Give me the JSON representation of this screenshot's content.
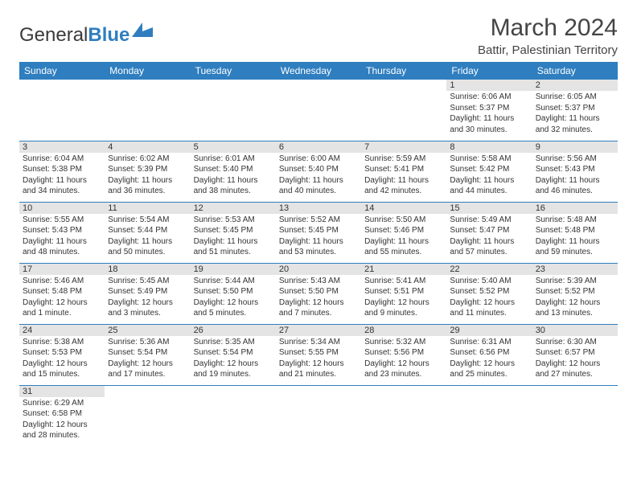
{
  "brand": {
    "part1": "General",
    "part2": "Blue",
    "logo_color": "#2f7ebf"
  },
  "title": "March 2024",
  "location": "Battir, Palestinian Territory",
  "colors": {
    "header_bg": "#2f7ebf",
    "header_text": "#ffffff",
    "daynum_bg": "#e4e4e4",
    "border": "#2f7ebf",
    "text": "#333333"
  },
  "day_headers": [
    "Sunday",
    "Monday",
    "Tuesday",
    "Wednesday",
    "Thursday",
    "Friday",
    "Saturday"
  ],
  "weeks": [
    [
      null,
      null,
      null,
      null,
      null,
      {
        "n": "1",
        "sr": "Sunrise: 6:06 AM",
        "ss": "Sunset: 5:37 PM",
        "dl": "Daylight: 11 hours and 30 minutes."
      },
      {
        "n": "2",
        "sr": "Sunrise: 6:05 AM",
        "ss": "Sunset: 5:37 PM",
        "dl": "Daylight: 11 hours and 32 minutes."
      }
    ],
    [
      {
        "n": "3",
        "sr": "Sunrise: 6:04 AM",
        "ss": "Sunset: 5:38 PM",
        "dl": "Daylight: 11 hours and 34 minutes."
      },
      {
        "n": "4",
        "sr": "Sunrise: 6:02 AM",
        "ss": "Sunset: 5:39 PM",
        "dl": "Daylight: 11 hours and 36 minutes."
      },
      {
        "n": "5",
        "sr": "Sunrise: 6:01 AM",
        "ss": "Sunset: 5:40 PM",
        "dl": "Daylight: 11 hours and 38 minutes."
      },
      {
        "n": "6",
        "sr": "Sunrise: 6:00 AM",
        "ss": "Sunset: 5:40 PM",
        "dl": "Daylight: 11 hours and 40 minutes."
      },
      {
        "n": "7",
        "sr": "Sunrise: 5:59 AM",
        "ss": "Sunset: 5:41 PM",
        "dl": "Daylight: 11 hours and 42 minutes."
      },
      {
        "n": "8",
        "sr": "Sunrise: 5:58 AM",
        "ss": "Sunset: 5:42 PM",
        "dl": "Daylight: 11 hours and 44 minutes."
      },
      {
        "n": "9",
        "sr": "Sunrise: 5:56 AM",
        "ss": "Sunset: 5:43 PM",
        "dl": "Daylight: 11 hours and 46 minutes."
      }
    ],
    [
      {
        "n": "10",
        "sr": "Sunrise: 5:55 AM",
        "ss": "Sunset: 5:43 PM",
        "dl": "Daylight: 11 hours and 48 minutes."
      },
      {
        "n": "11",
        "sr": "Sunrise: 5:54 AM",
        "ss": "Sunset: 5:44 PM",
        "dl": "Daylight: 11 hours and 50 minutes."
      },
      {
        "n": "12",
        "sr": "Sunrise: 5:53 AM",
        "ss": "Sunset: 5:45 PM",
        "dl": "Daylight: 11 hours and 51 minutes."
      },
      {
        "n": "13",
        "sr": "Sunrise: 5:52 AM",
        "ss": "Sunset: 5:45 PM",
        "dl": "Daylight: 11 hours and 53 minutes."
      },
      {
        "n": "14",
        "sr": "Sunrise: 5:50 AM",
        "ss": "Sunset: 5:46 PM",
        "dl": "Daylight: 11 hours and 55 minutes."
      },
      {
        "n": "15",
        "sr": "Sunrise: 5:49 AM",
        "ss": "Sunset: 5:47 PM",
        "dl": "Daylight: 11 hours and 57 minutes."
      },
      {
        "n": "16",
        "sr": "Sunrise: 5:48 AM",
        "ss": "Sunset: 5:48 PM",
        "dl": "Daylight: 11 hours and 59 minutes."
      }
    ],
    [
      {
        "n": "17",
        "sr": "Sunrise: 5:46 AM",
        "ss": "Sunset: 5:48 PM",
        "dl": "Daylight: 12 hours and 1 minute."
      },
      {
        "n": "18",
        "sr": "Sunrise: 5:45 AM",
        "ss": "Sunset: 5:49 PM",
        "dl": "Daylight: 12 hours and 3 minutes."
      },
      {
        "n": "19",
        "sr": "Sunrise: 5:44 AM",
        "ss": "Sunset: 5:50 PM",
        "dl": "Daylight: 12 hours and 5 minutes."
      },
      {
        "n": "20",
        "sr": "Sunrise: 5:43 AM",
        "ss": "Sunset: 5:50 PM",
        "dl": "Daylight: 12 hours and 7 minutes."
      },
      {
        "n": "21",
        "sr": "Sunrise: 5:41 AM",
        "ss": "Sunset: 5:51 PM",
        "dl": "Daylight: 12 hours and 9 minutes."
      },
      {
        "n": "22",
        "sr": "Sunrise: 5:40 AM",
        "ss": "Sunset: 5:52 PM",
        "dl": "Daylight: 12 hours and 11 minutes."
      },
      {
        "n": "23",
        "sr": "Sunrise: 5:39 AM",
        "ss": "Sunset: 5:52 PM",
        "dl": "Daylight: 12 hours and 13 minutes."
      }
    ],
    [
      {
        "n": "24",
        "sr": "Sunrise: 5:38 AM",
        "ss": "Sunset: 5:53 PM",
        "dl": "Daylight: 12 hours and 15 minutes."
      },
      {
        "n": "25",
        "sr": "Sunrise: 5:36 AM",
        "ss": "Sunset: 5:54 PM",
        "dl": "Daylight: 12 hours and 17 minutes."
      },
      {
        "n": "26",
        "sr": "Sunrise: 5:35 AM",
        "ss": "Sunset: 5:54 PM",
        "dl": "Daylight: 12 hours and 19 minutes."
      },
      {
        "n": "27",
        "sr": "Sunrise: 5:34 AM",
        "ss": "Sunset: 5:55 PM",
        "dl": "Daylight: 12 hours and 21 minutes."
      },
      {
        "n": "28",
        "sr": "Sunrise: 5:32 AM",
        "ss": "Sunset: 5:56 PM",
        "dl": "Daylight: 12 hours and 23 minutes."
      },
      {
        "n": "29",
        "sr": "Sunrise: 6:31 AM",
        "ss": "Sunset: 6:56 PM",
        "dl": "Daylight: 12 hours and 25 minutes."
      },
      {
        "n": "30",
        "sr": "Sunrise: 6:30 AM",
        "ss": "Sunset: 6:57 PM",
        "dl": "Daylight: 12 hours and 27 minutes."
      }
    ],
    [
      {
        "n": "31",
        "sr": "Sunrise: 6:29 AM",
        "ss": "Sunset: 6:58 PM",
        "dl": "Daylight: 12 hours and 28 minutes."
      },
      null,
      null,
      null,
      null,
      null,
      null
    ]
  ]
}
